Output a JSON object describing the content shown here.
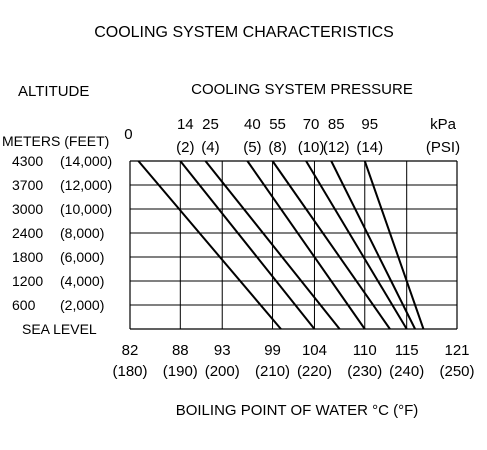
{
  "title": "COOLING SYSTEM CHARACTERISTICS",
  "left_header": "ALTITUDE",
  "top_header": "COOLING SYSTEM PRESSURE",
  "units_header": "METERS (FEET)",
  "pressure_unit_kpa": "kPa",
  "pressure_unit_psi": "(PSI)",
  "chart_data": {
    "type": "line",
    "title": "COOLING SYSTEM CHARACTERISTICS",
    "xlabel": "BOILING POINT OF WATER °C (°F)",
    "ylabel": "ALTITUDE",
    "x_ticks_c": [
      "82",
      "88",
      "93",
      "99",
      "104",
      "110",
      "115",
      "121"
    ],
    "x_ticks_f": [
      "(180)",
      "(190)",
      "(200)",
      "(210)",
      "(220)",
      "(230)",
      "(240)",
      "(250)"
    ],
    "xlim_c": [
      82,
      121
    ],
    "y_categories": [
      {
        "meters": "4300",
        "feet": "(14,000)"
      },
      {
        "meters": "3700",
        "feet": "(12,000)"
      },
      {
        "meters": "3000",
        "feet": "(10,000)"
      },
      {
        "meters": "2400",
        "feet": "(8,000)"
      },
      {
        "meters": "1800",
        "feet": "(6,000)"
      },
      {
        "meters": "1200",
        "feet": "(4,000)"
      },
      {
        "meters": "600",
        "feet": "(2,000)"
      },
      {
        "meters": "SEA LEVEL",
        "feet": ""
      }
    ],
    "y_values_ft": [
      14000,
      12000,
      10000,
      8000,
      6000,
      4000,
      2000,
      0
    ],
    "grid": true,
    "series": [
      {
        "kpa": "0",
        "psi": "",
        "x_top_c": 83,
        "x_bottom_c": 100
      },
      {
        "kpa": "14",
        "psi": "(2)",
        "x_top_c": 88,
        "x_bottom_c": 104
      },
      {
        "kpa": "25",
        "psi": "(4)",
        "x_top_c": 91,
        "x_bottom_c": 107
      },
      {
        "kpa": "40",
        "psi": "(5)",
        "x_top_c": 96,
        "x_bottom_c": 110
      },
      {
        "kpa": "55",
        "psi": "(8)",
        "x_top_c": 99,
        "x_bottom_c": 113
      },
      {
        "kpa": "70",
        "psi": "(10)",
        "x_top_c": 103,
        "x_bottom_c": 115
      },
      {
        "kpa": "85",
        "psi": "(12)",
        "x_top_c": 106,
        "x_bottom_c": 116
      },
      {
        "kpa": "95",
        "psi": "(14)",
        "x_top_c": 110,
        "x_bottom_c": 117
      }
    ]
  }
}
